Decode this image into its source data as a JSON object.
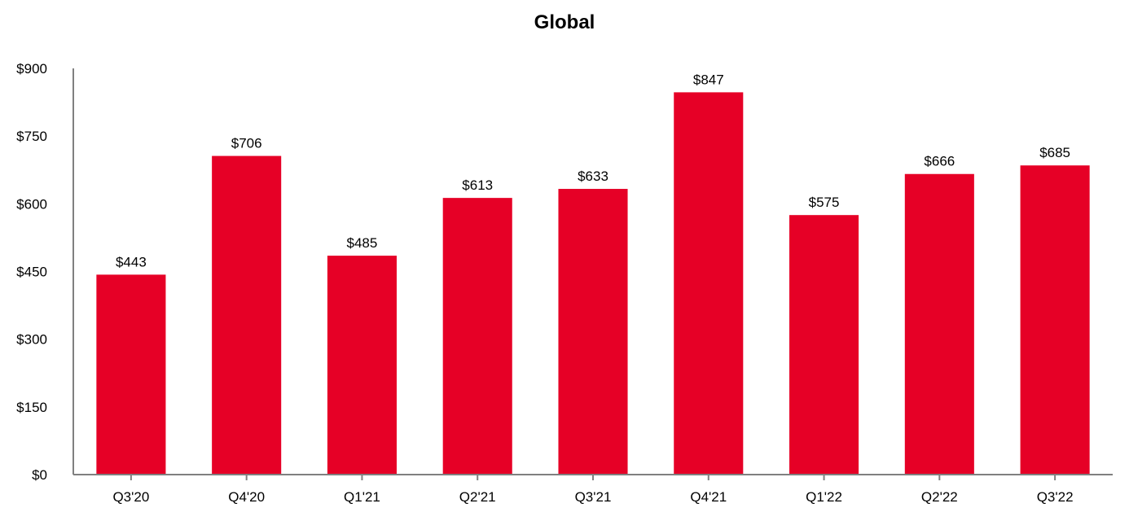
{
  "chart_data": {
    "type": "bar",
    "title": "Global",
    "categories": [
      "Q3'20",
      "Q4'20",
      "Q1'21",
      "Q2'21",
      "Q3'21",
      "Q4'21",
      "Q1'22",
      "Q2'22",
      "Q3'22"
    ],
    "values": [
      443,
      706,
      485,
      613,
      633,
      847,
      575,
      666,
      685
    ],
    "data_labels": [
      "$443",
      "$706",
      "$485",
      "$613",
      "$633",
      "$847",
      "$575",
      "$666",
      "$685"
    ],
    "y_ticks": [
      0,
      150,
      300,
      450,
      600,
      750,
      900
    ],
    "y_tick_labels": [
      "$0",
      "$150",
      "$300",
      "$450",
      "$600",
      "$750",
      "$900"
    ],
    "ylim": [
      0,
      900
    ],
    "xlabel": "",
    "ylabel": "",
    "grid": false,
    "legend": "none",
    "bar_color": "#e60026",
    "axis_color": "#808080"
  }
}
